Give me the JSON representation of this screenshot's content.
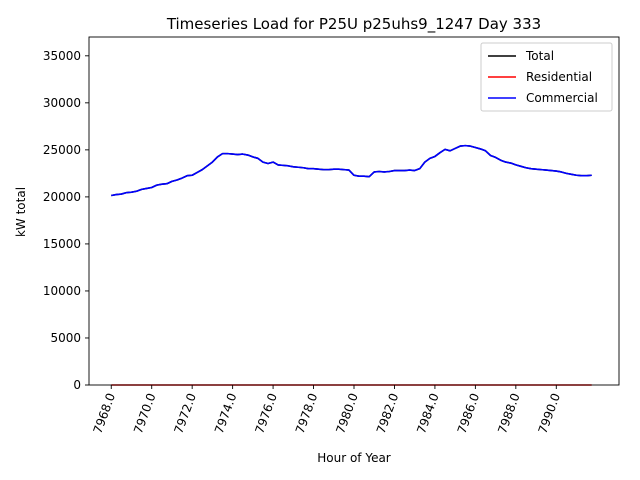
{
  "chart_data": {
    "type": "line",
    "title": "Timeseries Load for P25U p25uhs9_1247  Day 333",
    "xlabel": "Hour of Year",
    "ylabel": "kW total",
    "xlim": [
      7966.9,
      7993.1
    ],
    "ylim": [
      0,
      37000
    ],
    "x_ticks": [
      7968.0,
      7970.0,
      7972.0,
      7974.0,
      7976.0,
      7978.0,
      7980.0,
      7982.0,
      7984.0,
      7986.0,
      7988.0,
      7990.0
    ],
    "x_tick_labels": [
      "7968.0",
      "7970.0",
      "7972.0",
      "7974.0",
      "7976.0",
      "7978.0",
      "7980.0",
      "7982.0",
      "7984.0",
      "7986.0",
      "7988.0",
      "7990.0"
    ],
    "y_ticks": [
      0,
      5000,
      10000,
      15000,
      20000,
      25000,
      30000,
      35000
    ],
    "y_tick_labels": [
      "0",
      "5000",
      "10000",
      "15000",
      "20000",
      "25000",
      "30000",
      "35000"
    ],
    "legend_position": "top-right",
    "grid": false,
    "x": [
      7968.0,
      7968.25,
      7968.5,
      7968.75,
      7969.0,
      7969.25,
      7969.5,
      7969.75,
      7970.0,
      7970.25,
      7970.5,
      7970.75,
      7971.0,
      7971.25,
      7971.5,
      7971.75,
      7972.0,
      7972.25,
      7972.5,
      7972.75,
      7973.0,
      7973.25,
      7973.5,
      7973.75,
      7974.0,
      7974.25,
      7974.5,
      7974.75,
      7975.0,
      7975.25,
      7975.5,
      7975.75,
      7976.0,
      7976.25,
      7976.5,
      7976.75,
      7977.0,
      7977.25,
      7977.5,
      7977.75,
      7978.0,
      7978.25,
      7978.5,
      7978.75,
      7979.0,
      7979.25,
      7979.5,
      7979.75,
      7980.0,
      7980.25,
      7980.5,
      7980.75,
      7981.0,
      7981.25,
      7981.5,
      7981.75,
      7982.0,
      7982.25,
      7982.5,
      7982.75,
      7983.0,
      7983.25,
      7983.5,
      7983.75,
      7984.0,
      7984.25,
      7984.5,
      7984.75,
      7985.0,
      7985.25,
      7985.5,
      7985.75,
      7986.0,
      7986.25,
      7986.5,
      7986.75,
      7987.0,
      7987.25,
      7987.5,
      7987.75,
      7988.0,
      7988.25,
      7988.5,
      7988.75,
      7989.0,
      7989.25,
      7989.5,
      7989.75,
      7990.0,
      7990.25,
      7990.5,
      7990.75,
      7991.0,
      7991.25,
      7991.5,
      7991.75
    ],
    "series": [
      {
        "name": "Total",
        "color": "#000000",
        "values": [
          20150,
          20250,
          20300,
          20450,
          20500,
          20600,
          20800,
          20900,
          21000,
          21250,
          21350,
          21400,
          21650,
          21800,
          22000,
          22250,
          22300,
          22600,
          22900,
          23300,
          23700,
          24250,
          24600,
          24600,
          24550,
          24500,
          24550,
          24450,
          24250,
          24100,
          23700,
          23550,
          23700,
          23400,
          23350,
          23300,
          23200,
          23150,
          23100,
          23000,
          23000,
          22950,
          22900,
          22900,
          22950,
          22950,
          22900,
          22850,
          22300,
          22200,
          22200,
          22150,
          22650,
          22700,
          22650,
          22700,
          22800,
          22800,
          22800,
          22850,
          22800,
          23000,
          23700,
          24100,
          24300,
          24700,
          25050,
          24900,
          25150,
          25400,
          25450,
          25400,
          25250,
          25100,
          24900,
          24400,
          24200,
          23900,
          23700,
          23600,
          23400,
          23250,
          23100,
          23000,
          22950,
          22900,
          22850,
          22800,
          22750,
          22650,
          22500,
          22400,
          22300,
          22250,
          22250,
          22300
        ]
      },
      {
        "name": "Residential",
        "color": "#ff0000",
        "values": [
          0,
          0,
          0,
          0,
          0,
          0,
          0,
          0,
          0,
          0,
          0,
          0,
          0,
          0,
          0,
          0,
          0,
          0,
          0,
          0,
          0,
          0,
          0,
          0,
          0,
          0,
          0,
          0,
          0,
          0,
          0,
          0,
          0,
          0,
          0,
          0,
          0,
          0,
          0,
          0,
          0,
          0,
          0,
          0,
          0,
          0,
          0,
          0,
          0,
          0,
          0,
          0,
          0,
          0,
          0,
          0,
          0,
          0,
          0,
          0,
          0,
          0,
          0,
          0,
          0,
          0,
          0,
          0,
          0,
          0,
          0,
          0,
          0,
          0,
          0,
          0,
          0,
          0,
          0,
          0,
          0,
          0,
          0,
          0,
          0,
          0,
          0,
          0,
          0,
          0,
          0,
          0,
          0,
          0,
          0,
          0
        ]
      },
      {
        "name": "Commercial",
        "color": "#0000ff",
        "values": [
          20150,
          20250,
          20300,
          20450,
          20500,
          20600,
          20800,
          20900,
          21000,
          21250,
          21350,
          21400,
          21650,
          21800,
          22000,
          22250,
          22300,
          22600,
          22900,
          23300,
          23700,
          24250,
          24600,
          24600,
          24550,
          24500,
          24550,
          24450,
          24250,
          24100,
          23700,
          23550,
          23700,
          23400,
          23350,
          23300,
          23200,
          23150,
          23100,
          23000,
          23000,
          22950,
          22900,
          22900,
          22950,
          22950,
          22900,
          22850,
          22300,
          22200,
          22200,
          22150,
          22650,
          22700,
          22650,
          22700,
          22800,
          22800,
          22800,
          22850,
          22800,
          23000,
          23700,
          24100,
          24300,
          24700,
          25050,
          24900,
          25150,
          25400,
          25450,
          25400,
          25250,
          25100,
          24900,
          24400,
          24200,
          23900,
          23700,
          23600,
          23400,
          23250,
          23100,
          23000,
          22950,
          22900,
          22850,
          22800,
          22750,
          22650,
          22500,
          22400,
          22300,
          22250,
          22250,
          22300
        ]
      }
    ]
  }
}
